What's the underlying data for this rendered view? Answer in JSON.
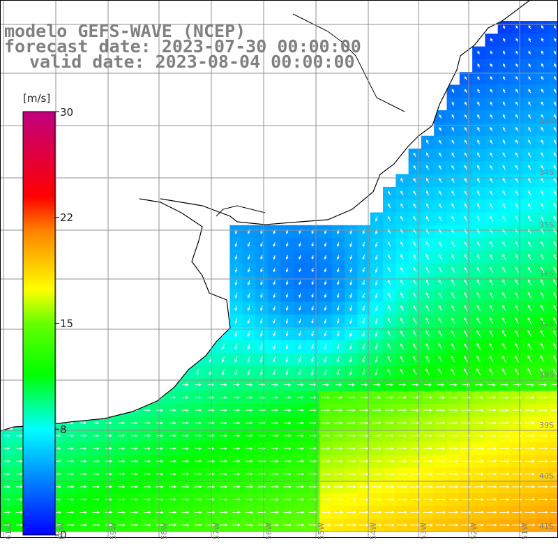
{
  "title": {
    "line1": "modelo GEFS-WAVE (NCEP)",
    "line2": "forecast date: 2023-07-30 00:00:00",
    "line3": "valid date: 2023-08-04 00:00:00"
  },
  "colorbar": {
    "unit": "[m/s]",
    "min": 0,
    "max": 30,
    "ticks": [
      "30",
      "22",
      "15",
      "8",
      "0"
    ],
    "tick_values": [
      30,
      22.5,
      15,
      7.5,
      0
    ]
  },
  "lat_labels": [
    "33S",
    "34S",
    "35S",
    "36S",
    "37S",
    "38S",
    "39S",
    "40S",
    "41S"
  ],
  "lon_labels": [
    "61W",
    "60W",
    "59W",
    "58W",
    "57W",
    "56W",
    "55W",
    "54W",
    "53W",
    "52W",
    "51W"
  ],
  "colors": {
    "land": "#ffffff",
    "coast": "#000000",
    "grid": "#909090",
    "title": "#808080"
  }
}
